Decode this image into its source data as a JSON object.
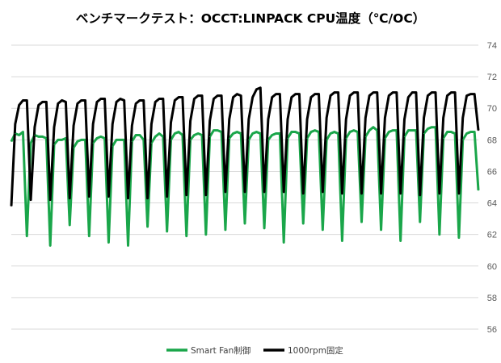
{
  "chart_data": {
    "type": "line",
    "title": "ベンチマークテスト：OCCT:LINPACK CPU温度（℃/OC）",
    "xlabel": "",
    "ylabel": "",
    "ylim": [
      56,
      74
    ],
    "yticks": [
      56,
      58,
      60,
      62,
      64,
      66,
      68,
      70,
      72,
      74
    ],
    "y_axis_position": "right",
    "grid": true,
    "legend": "bottom",
    "series": [
      {
        "name": "Smart Fan制御",
        "color": "#1aa64a",
        "values": [
          67.9,
          68.4,
          68.3,
          68.5,
          61.9,
          67.8,
          68.3,
          68.2,
          68.2,
          68.1,
          61.3,
          67.7,
          68.0,
          68.0,
          68.1,
          62.6,
          67.5,
          67.9,
          68.0,
          68.0,
          61.9,
          67.8,
          68.1,
          68.2,
          68.1,
          61.5,
          67.6,
          68.0,
          68.0,
          68.0,
          61.3,
          67.9,
          68.3,
          68.3,
          68.0,
          62.5,
          67.8,
          68.2,
          68.4,
          68.2,
          62.2,
          68.0,
          68.4,
          68.5,
          68.3,
          61.9,
          68.0,
          68.3,
          68.4,
          68.3,
          62.0,
          68.2,
          68.6,
          68.6,
          68.5,
          62.3,
          68.1,
          68.4,
          68.5,
          68.4,
          62.7,
          68.0,
          68.4,
          68.5,
          68.4,
          62.4,
          68.0,
          68.3,
          68.4,
          68.4,
          61.5,
          68.1,
          68.5,
          68.5,
          68.4,
          62.7,
          68.1,
          68.5,
          68.6,
          68.5,
          62.3,
          68.0,
          68.4,
          68.5,
          68.4,
          61.6,
          68.1,
          68.5,
          68.6,
          68.5,
          62.8,
          68.2,
          68.6,
          68.8,
          68.6,
          62.3,
          68.1,
          68.5,
          68.6,
          68.6,
          61.6,
          68.2,
          68.6,
          68.6,
          68.6,
          62.8,
          68.4,
          68.7,
          68.8,
          68.8,
          62.0,
          68.1,
          68.5,
          68.5,
          68.4,
          61.8,
          68.0,
          68.4,
          68.5,
          68.5,
          64.8
        ]
      },
      {
        "name": "1000rpm固定",
        "color": "#000000",
        "values": [
          63.8,
          69.0,
          70.2,
          70.5,
          70.5,
          64.2,
          68.8,
          70.2,
          70.4,
          70.4,
          64.2,
          68.8,
          70.3,
          70.5,
          70.4,
          64.3,
          68.9,
          70.3,
          70.5,
          70.5,
          64.4,
          69.0,
          70.4,
          70.6,
          70.6,
          64.4,
          69.0,
          70.4,
          70.6,
          70.5,
          64.3,
          68.9,
          70.3,
          70.5,
          70.5,
          64.3,
          69.0,
          70.4,
          70.6,
          70.6,
          64.4,
          69.1,
          70.5,
          70.7,
          70.7,
          64.5,
          69.2,
          70.6,
          70.8,
          70.8,
          64.5,
          69.2,
          70.6,
          70.8,
          70.8,
          64.7,
          69.3,
          70.7,
          70.9,
          70.8,
          64.7,
          69.3,
          70.7,
          71.2,
          71.3,
          64.7,
          69.3,
          70.7,
          70.9,
          70.9,
          64.7,
          69.3,
          70.7,
          70.9,
          70.9,
          64.6,
          69.3,
          70.7,
          70.9,
          70.9,
          64.7,
          69.4,
          70.8,
          71.0,
          71.0,
          64.6,
          69.3,
          70.8,
          71.0,
          71.0,
          64.6,
          69.4,
          70.8,
          71.0,
          71.0,
          64.6,
          69.4,
          70.8,
          71.0,
          71.0,
          64.6,
          69.3,
          70.7,
          71.0,
          71.0,
          64.5,
          69.4,
          70.8,
          71.0,
          71.0,
          64.6,
          69.4,
          70.8,
          71.0,
          71.0,
          64.6,
          69.4,
          70.8,
          70.9,
          70.9,
          68.6
        ]
      }
    ]
  }
}
